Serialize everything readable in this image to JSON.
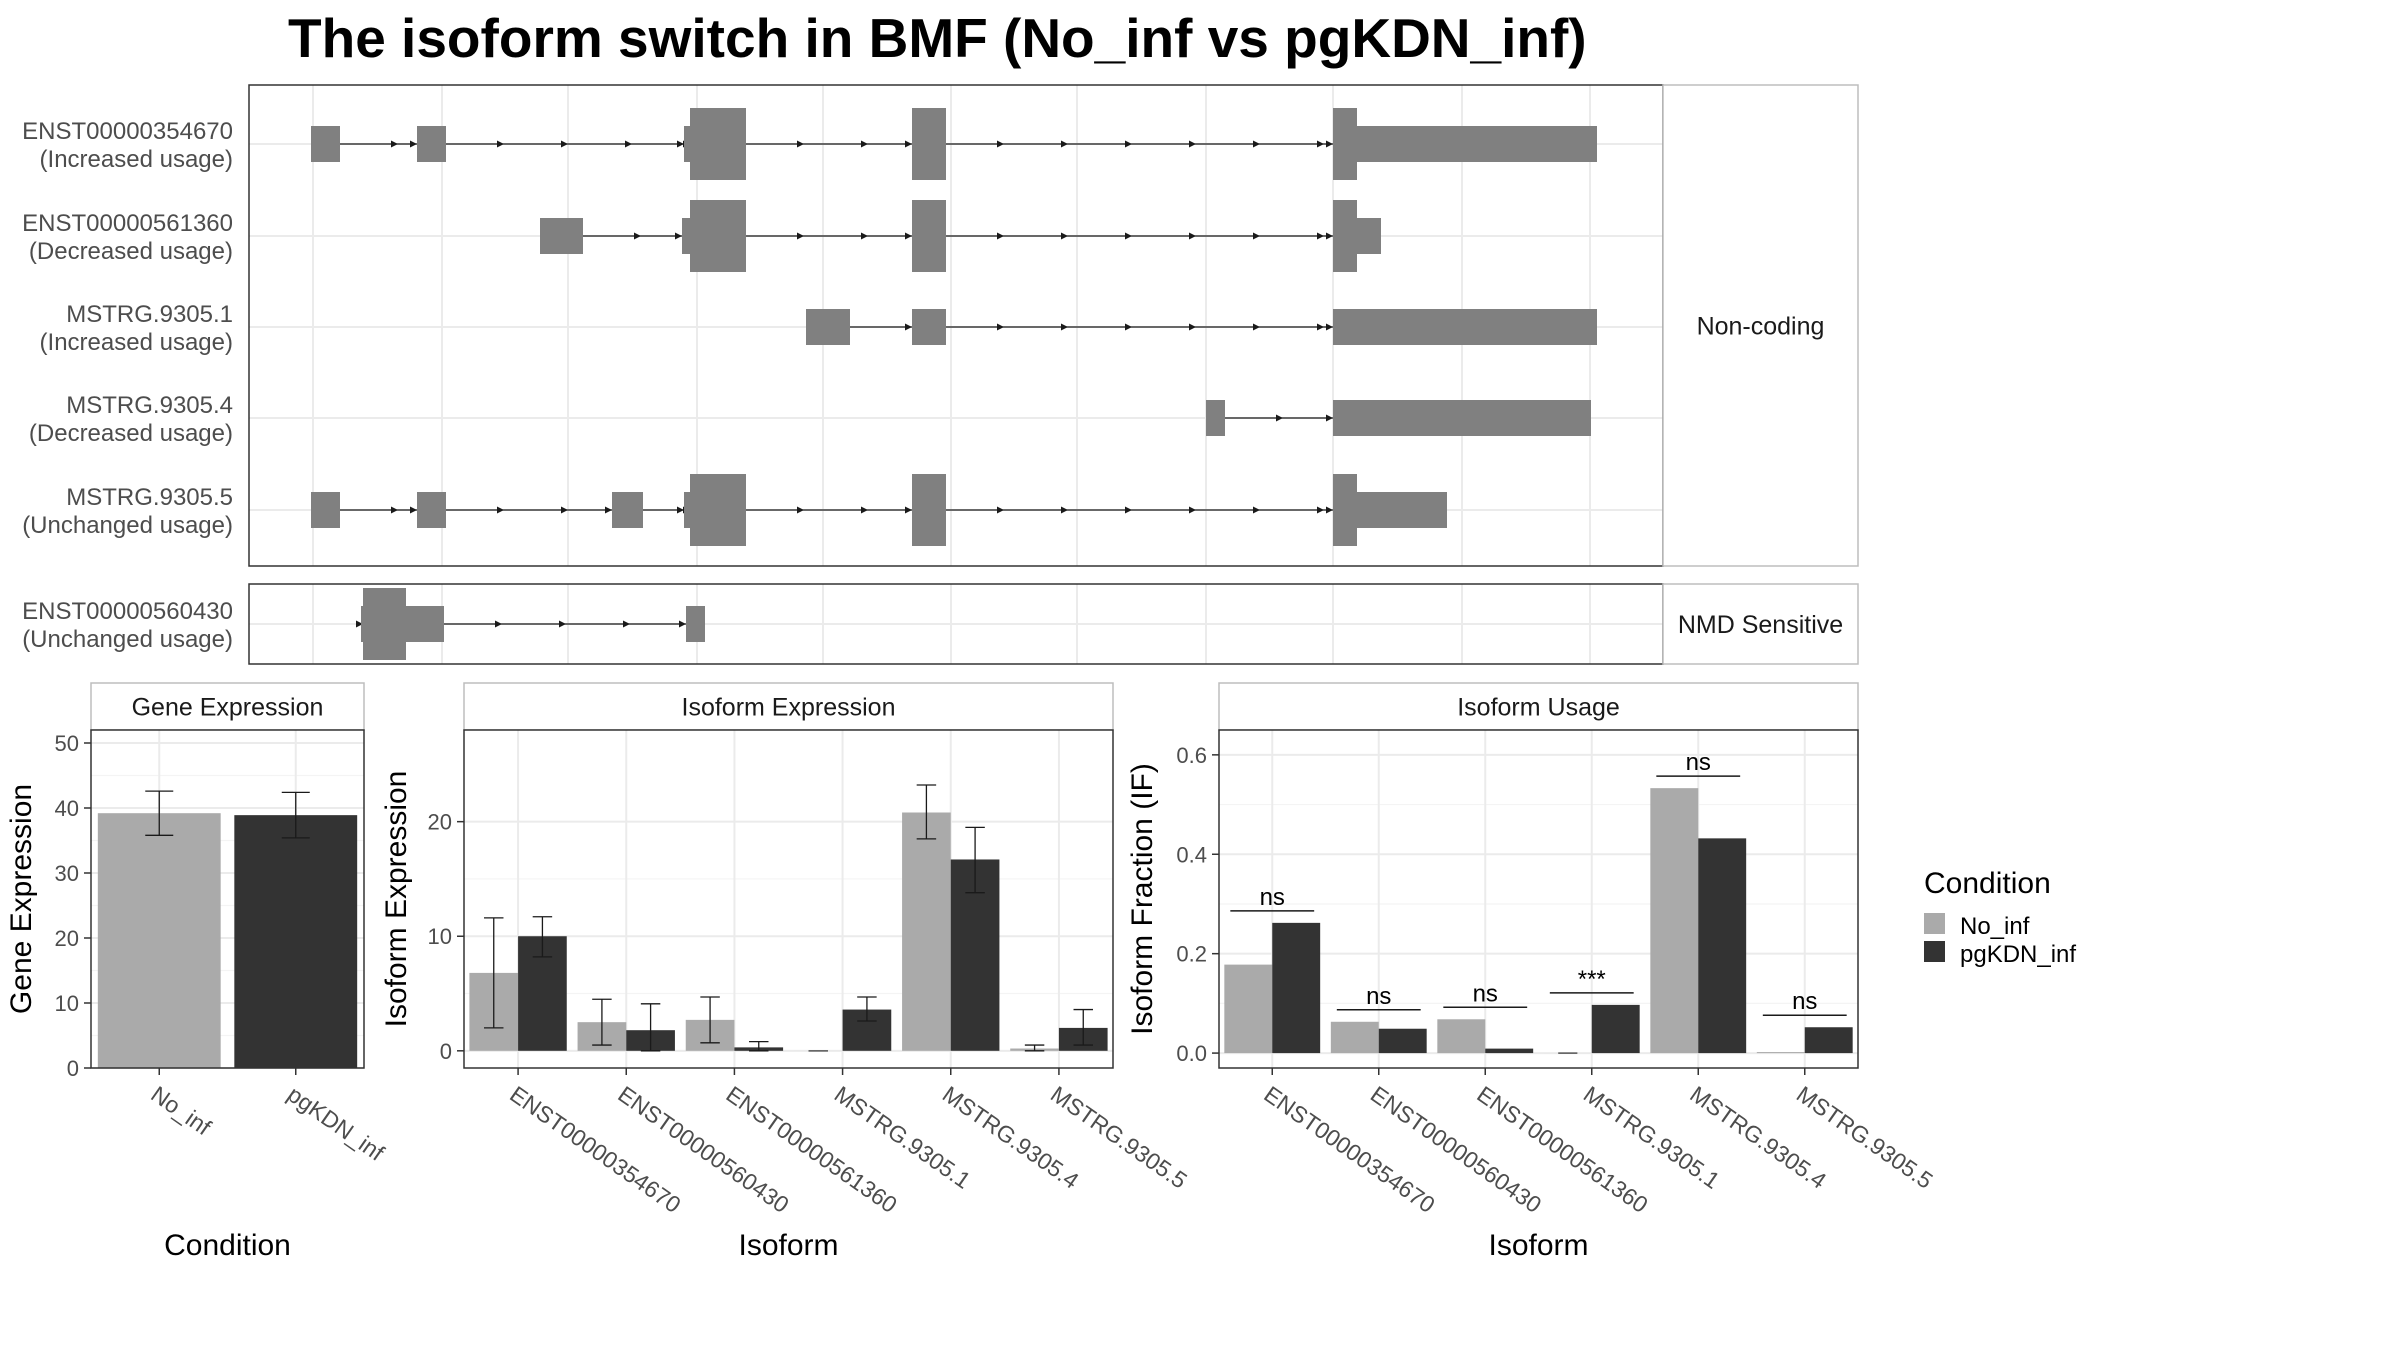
{
  "title": "The isoform switch in BMF (No_inf vs pgKDN_inf)",
  "colors": {
    "no_inf": "#aaaaaa",
    "pgkdn_inf": "#333333",
    "exon": "#808080"
  },
  "chart_data": [
    {
      "type": "diagram",
      "panel_label": "Non-coding",
      "transcripts": [
        {
          "id": "ENST00000354670",
          "usage": "(Increased usage)"
        },
        {
          "id": "ENST00000561360",
          "usage": "(Decreased usage)"
        },
        {
          "id": "MSTRG.9305.1",
          "usage": "(Increased usage)"
        },
        {
          "id": "MSTRG.9305.4",
          "usage": "(Decreased usage)"
        },
        {
          "id": "MSTRG.9305.5",
          "usage": "(Unchanged usage)"
        }
      ]
    },
    {
      "type": "diagram",
      "panel_label": "NMD Sensitive",
      "transcripts": [
        {
          "id": "ENST00000560430",
          "usage": "(Unchanged usage)"
        }
      ]
    },
    {
      "type": "bar",
      "panel_title": "Gene Expression",
      "xlabel": "Condition",
      "ylabel": "Gene Expression",
      "categories": [
        "No_inf",
        "pgKDN_inf"
      ],
      "values": [
        39.2,
        38.9
      ],
      "errors": [
        [
          35.8,
          42.6
        ],
        [
          35.4,
          42.4
        ]
      ],
      "ylim": [
        0,
        52
      ],
      "yticks": [
        0,
        10,
        20,
        30,
        40,
        50
      ]
    },
    {
      "type": "bar",
      "panel_title": "Isoform Expression",
      "xlabel": "Isoform",
      "ylabel": "Isoform Expression",
      "categories": [
        "ENST00000354670",
        "ENST00000560430",
        "ENST00000561360",
        "MSTRG.9305.1",
        "MSTRG.9305.4",
        "MSTRG.9305.5"
      ],
      "series": [
        {
          "name": "No_inf",
          "values": [
            6.8,
            2.5,
            2.7,
            0.0,
            20.8,
            0.2
          ],
          "errors": [
            [
              2.0,
              11.6
            ],
            [
              0.5,
              4.5
            ],
            [
              0.7,
              4.7
            ],
            [
              0.0,
              0.0
            ],
            [
              18.5,
              23.2
            ],
            [
              0.0,
              0.5
            ]
          ]
        },
        {
          "name": "pgKDN_inf",
          "values": [
            10.0,
            1.8,
            0.3,
            3.6,
            16.7,
            2.0
          ],
          "errors": [
            [
              8.2,
              11.7
            ],
            [
              0.0,
              4.1
            ],
            [
              0.0,
              0.8
            ],
            [
              2.6,
              4.7
            ],
            [
              13.8,
              19.5
            ],
            [
              0.5,
              3.6
            ]
          ]
        }
      ],
      "ylim": [
        -1.5,
        28
      ],
      "yticks": [
        0,
        10,
        20
      ]
    },
    {
      "type": "bar",
      "panel_title": "Isoform Usage",
      "xlabel": "Isoform",
      "ylabel": "Isoform Fraction (IF)",
      "categories": [
        "ENST00000354670",
        "ENST00000560430",
        "ENST00000561360",
        "MSTRG.9305.1",
        "MSTRG.9305.4",
        "MSTRG.9305.5"
      ],
      "series": [
        {
          "name": "No_inf",
          "values": [
            0.178,
            0.063,
            0.068,
            0.0,
            0.533,
            0.002
          ]
        },
        {
          "name": "pgKDN_inf",
          "values": [
            0.262,
            0.049,
            0.009,
            0.097,
            0.432,
            0.052
          ]
        }
      ],
      "significance": [
        "ns",
        "ns",
        "ns",
        "***",
        "ns",
        "ns"
      ],
      "ylim": [
        -0.03,
        0.65
      ],
      "yticks": [
        0.0,
        0.2,
        0.4,
        0.6
      ],
      "ytick_labels": [
        "0.0",
        "0.2",
        "0.4",
        "0.6"
      ]
    }
  ],
  "legend": {
    "title": "Condition",
    "entries": [
      "No_inf",
      "pgKDN_inf"
    ]
  }
}
